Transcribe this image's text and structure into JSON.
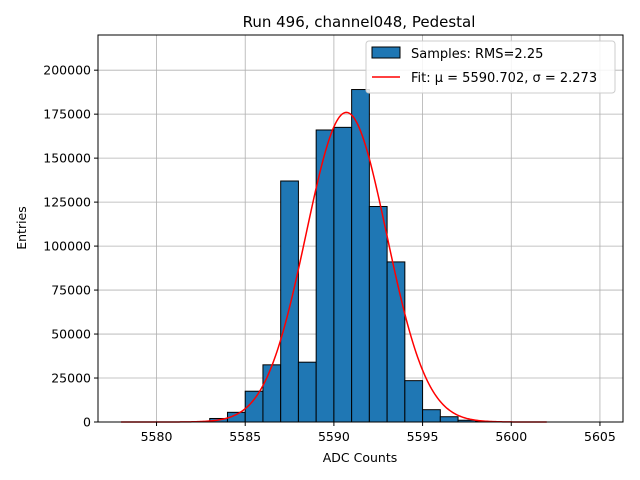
{
  "chart_data": {
    "type": "bar",
    "title": "Run 496, channel048, Pedestal",
    "xlabel": "ADC Counts",
    "ylabel": "Entries",
    "xlim": [
      5576.7,
      5606.3
    ],
    "ylim": [
      0,
      220000
    ],
    "xticks": [
      5580,
      5585,
      5590,
      5595,
      5600,
      5605
    ],
    "yticks": [
      0,
      25000,
      50000,
      75000,
      100000,
      125000,
      150000,
      175000,
      200000
    ],
    "grid": true,
    "legend_position": "top-right",
    "bins": [
      {
        "x0": 5583,
        "x1": 5584,
        "count": 2000
      },
      {
        "x0": 5584,
        "x1": 5585,
        "count": 5500
      },
      {
        "x0": 5585,
        "x1": 5586,
        "count": 17500
      },
      {
        "x0": 5586,
        "x1": 5587,
        "count": 32500
      },
      {
        "x0": 5587,
        "x1": 5588,
        "count": 137000
      },
      {
        "x0": 5588,
        "x1": 5589,
        "count": 34000
      },
      {
        "x0": 5589,
        "x1": 5590,
        "count": 166000
      },
      {
        "x0": 5590,
        "x1": 5591,
        "count": 167500
      },
      {
        "x0": 5591,
        "x1": 5592,
        "count": 189000
      },
      {
        "x0": 5592,
        "x1": 5593,
        "count": 122500
      },
      {
        "x0": 5593,
        "x1": 5594,
        "count": 91000
      },
      {
        "x0": 5594,
        "x1": 5595,
        "count": 23500
      },
      {
        "x0": 5595,
        "x1": 5596,
        "count": 7000
      },
      {
        "x0": 5596,
        "x1": 5597,
        "count": 3000
      },
      {
        "x0": 5597,
        "x1": 5598,
        "count": 1000
      },
      {
        "x0": 5598,
        "x1": 5599,
        "count": 300
      }
    ],
    "fit": {
      "type": "gaussian",
      "mu": 5590.702,
      "sigma": 2.273,
      "amplitude": 176000,
      "x_range": [
        5578,
        5602
      ]
    },
    "series": [
      {
        "name": "Samples: RMS=2.25",
        "kind": "histogram",
        "color": "#1f77b4",
        "edge_color": "#000000"
      },
      {
        "name": "Fit: μ = 5590.702, σ = 2.273",
        "kind": "line",
        "color": "#ff0000"
      }
    ]
  }
}
